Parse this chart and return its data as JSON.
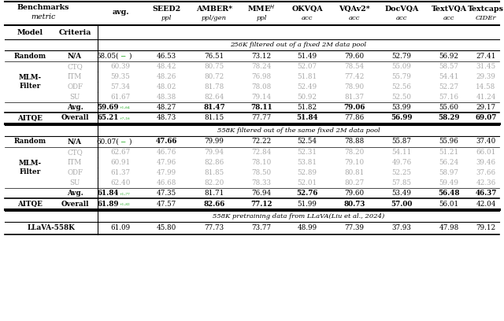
{
  "figsize": [
    6.4,
    4.08
  ],
  "dpi": 100,
  "background": "#ffffff",
  "section1_title": "256K filtered out of a fixed 2M data pool",
  "section2_title": "558K filtered out of the same fixed 2M data pool",
  "section3_title": "558K pretraining data from LLaVA(Liu et al., 2024)",
  "gray_color": "#aaaaaa",
  "green_color": "#22aa22",
  "black_color": "#111111"
}
